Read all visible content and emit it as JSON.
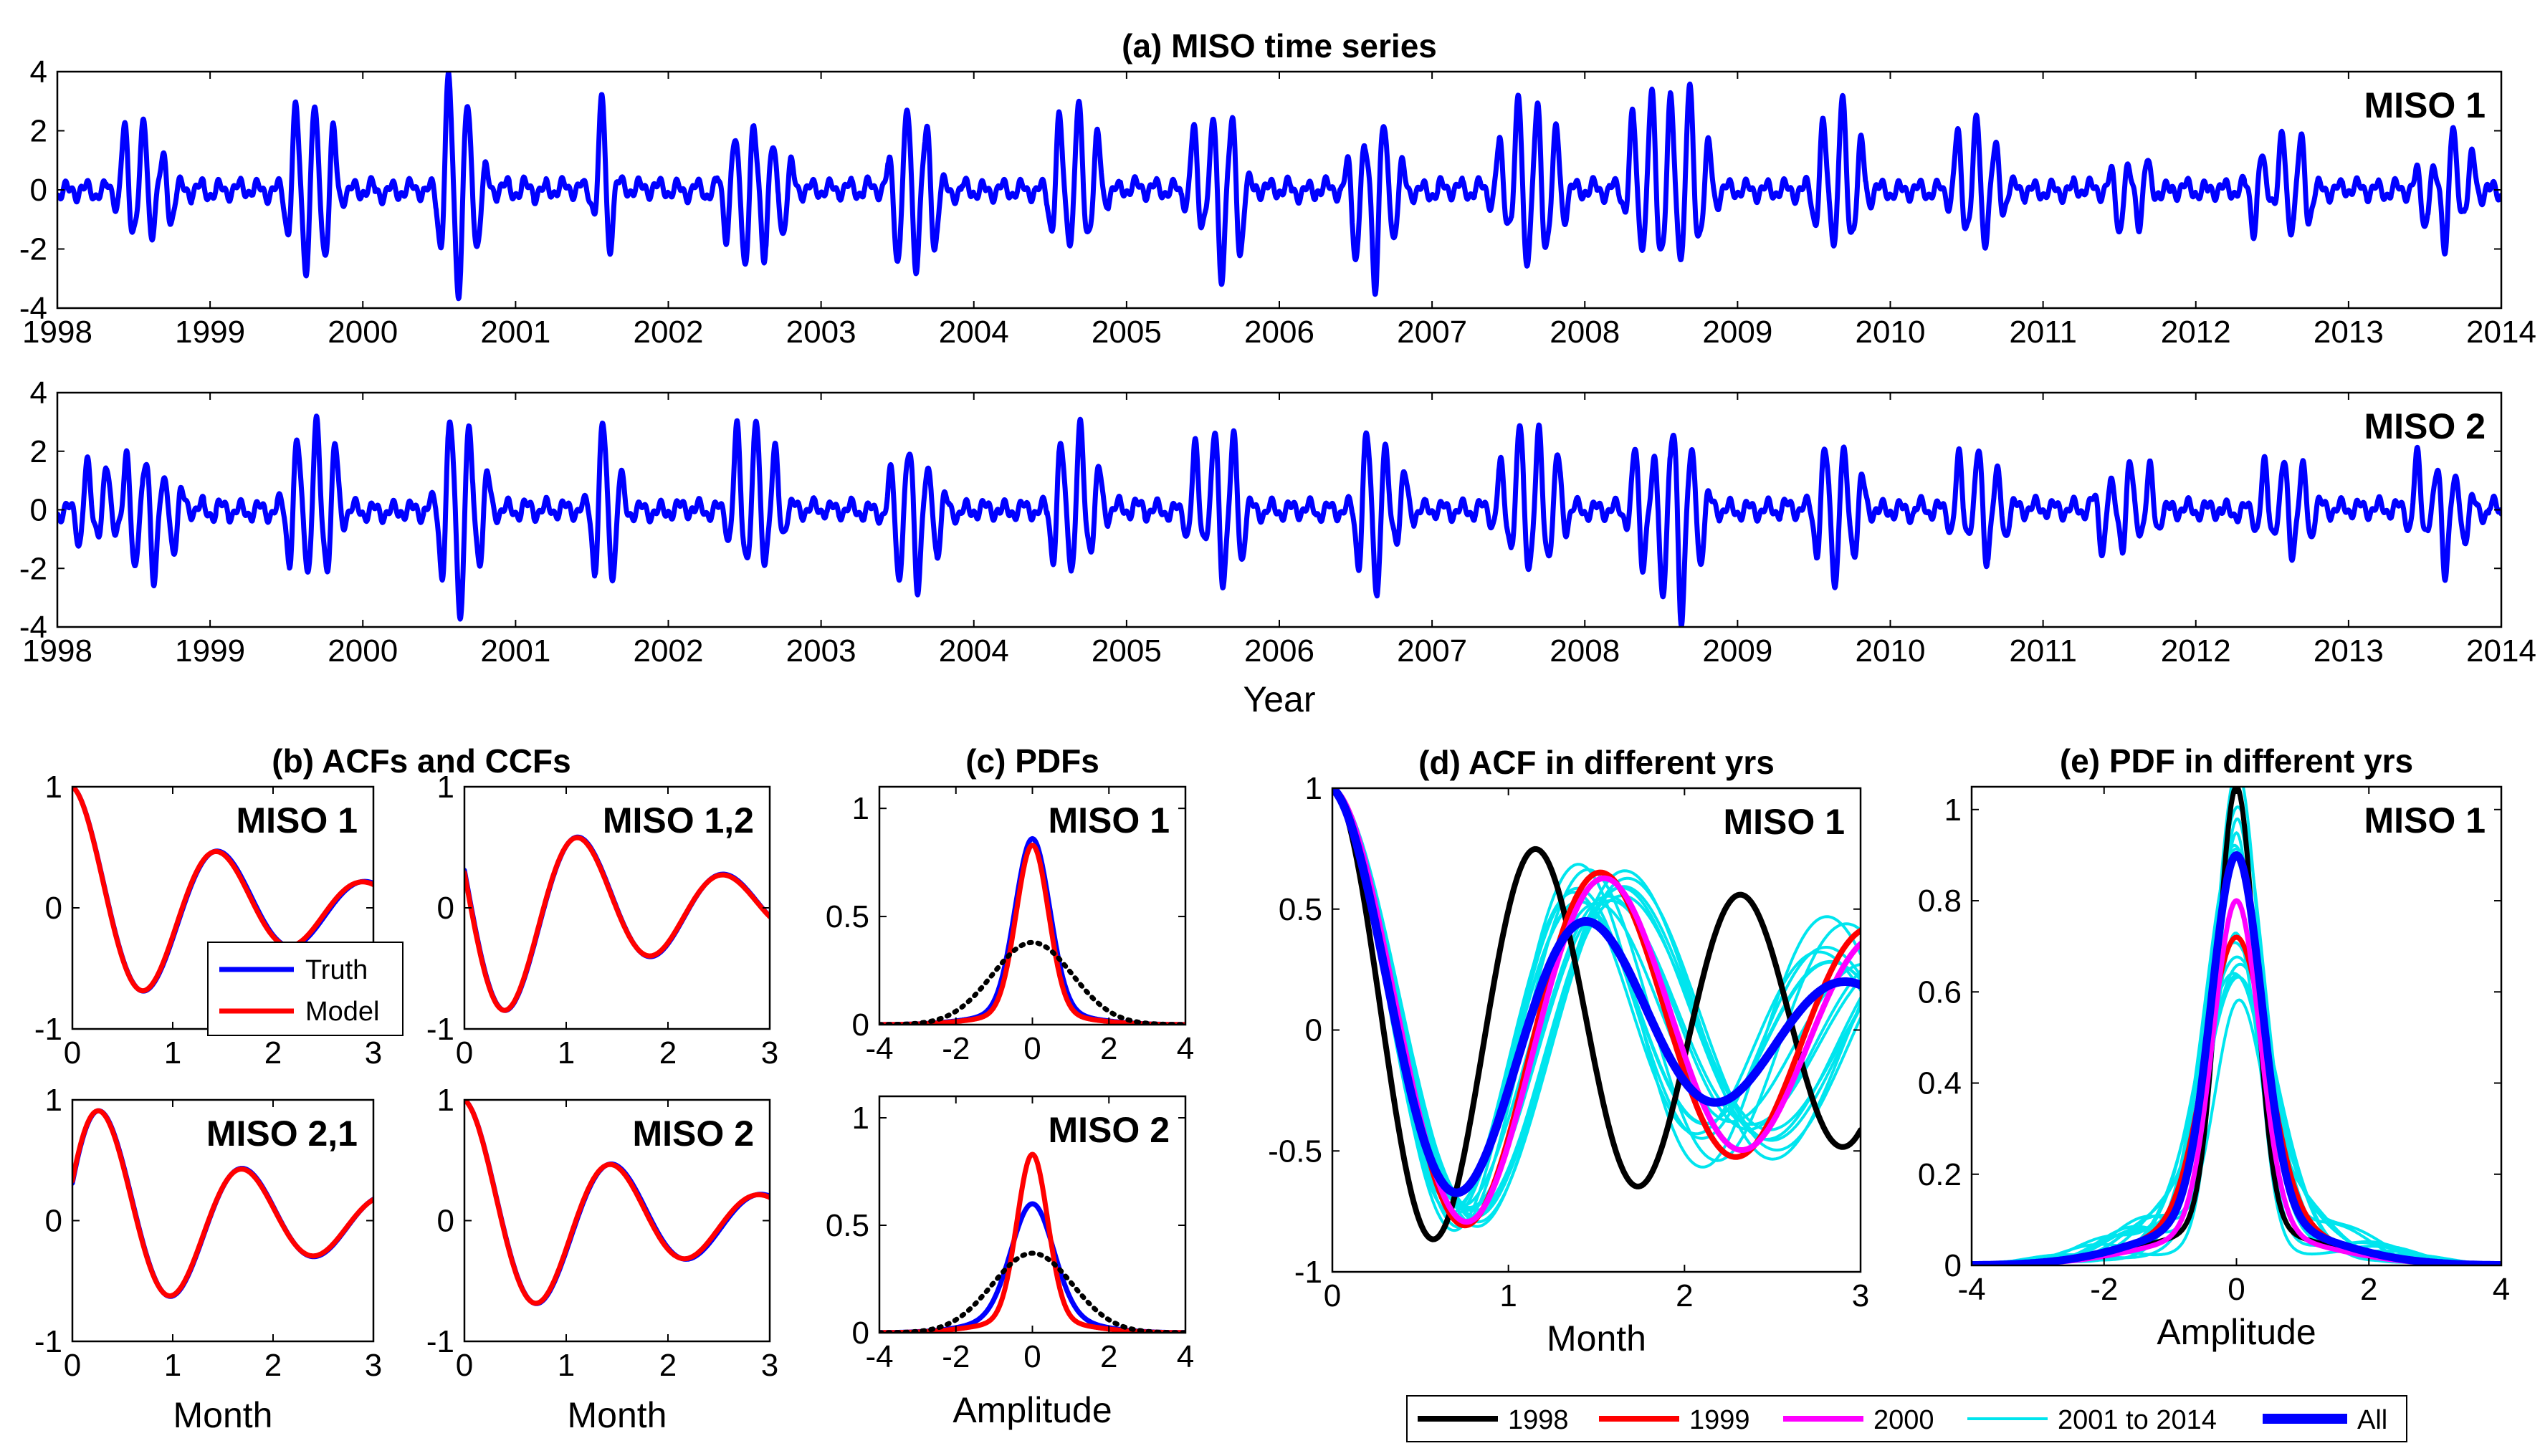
{
  "colors": {
    "truth": "#0000ff",
    "model": "#ff0000",
    "y1998": "#000000",
    "y1999": "#ff0000",
    "y2000": "#ff00ff",
    "y2001_2014": "#00e5ee",
    "all": "#0000ff",
    "gaussian": "#000000"
  },
  "chart_data": [
    {
      "id": "a1",
      "type": "line",
      "title": "(a) MISO time series",
      "label": "MISO 1",
      "xlabel": "",
      "xlim": [
        1998,
        2014
      ],
      "ylim": [
        -4,
        4
      ],
      "x_ticks": [
        "1998",
        "1999",
        "2000",
        "2001",
        "2002",
        "2003",
        "2004",
        "2005",
        "2006",
        "2007",
        "2008",
        "2009",
        "2010",
        "2011",
        "2012",
        "2013",
        "2014"
      ],
      "y_ticks": [
        "4",
        "2",
        "0",
        "-2",
        "-4"
      ],
      "series": [
        {
          "name": "MISO 1",
          "color": "#0000ff",
          "events": [
            [
              1998.45,
              2.1
            ],
            [
              1998.58,
              2.3
            ],
            [
              1998.72,
              1.2
            ],
            [
              1999.55,
              2.6
            ],
            [
              1999.66,
              3.1
            ],
            [
              1999.78,
              2.5
            ],
            [
              2000.55,
              3.5
            ],
            [
              2000.65,
              3.4
            ],
            [
              2000.75,
              1.6
            ],
            [
              2001.58,
              3.3
            ],
            [
              2002.4,
              1.8
            ],
            [
              2002.52,
              2.6
            ],
            [
              2002.64,
              2.2
            ],
            [
              2002.76,
              1.4
            ],
            [
              2003.5,
              2.2
            ],
            [
              2003.6,
              2.8
            ],
            [
              2003.72,
              2.3
            ],
            [
              2004.55,
              2.4
            ],
            [
              2004.68,
              2.8
            ],
            [
              2004.8,
              1.7
            ],
            [
              2005.45,
              2.0
            ],
            [
              2005.6,
              3.2
            ],
            [
              2005.72,
              2.6
            ],
            [
              2006.5,
              2.3
            ],
            [
              2006.64,
              3.3
            ],
            [
              2006.76,
              1.5
            ],
            [
              2007.45,
              1.5
            ],
            [
              2007.58,
              3.2
            ],
            [
              2007.7,
              2.8
            ],
            [
              2007.82,
              2.0
            ],
            [
              2008.32,
              2.4
            ],
            [
              2008.44,
              3.1
            ],
            [
              2008.56,
              2.9
            ],
            [
              2008.68,
              3.4
            ],
            [
              2008.8,
              1.5
            ],
            [
              2009.55,
              2.1
            ],
            [
              2009.68,
              3.0
            ],
            [
              2009.8,
              1.6
            ],
            [
              2010.45,
              1.8
            ],
            [
              2010.58,
              2.5
            ],
            [
              2010.7,
              1.3
            ],
            [
              2011.5,
              1.3
            ],
            [
              2011.65,
              1.2
            ],
            [
              2012.4,
              1.4
            ],
            [
              2012.58,
              1.8
            ],
            [
              2012.7,
              1.7
            ],
            [
              2013.5,
              1.2
            ],
            [
              2013.66,
              2.4
            ],
            [
              2013.8,
              1.0
            ]
          ],
          "seed": 11
        }
      ]
    },
    {
      "id": "a2",
      "type": "line",
      "title": "",
      "label": "MISO 2",
      "xlabel": "Year",
      "xlim": [
        1998,
        2014
      ],
      "ylim": [
        -4,
        4
      ],
      "x_ticks": [
        "1998",
        "1999",
        "2000",
        "2001",
        "2002",
        "2003",
        "2004",
        "2005",
        "2006",
        "2007",
        "2008",
        "2009",
        "2010",
        "2011",
        "2012",
        "2013",
        "2014"
      ],
      "y_ticks": [
        "4",
        "2",
        "0",
        "-2",
        "-4"
      ],
      "series": [
        {
          "name": "MISO 2",
          "color": "#0000ff",
          "events": [
            [
              1998.18,
              1.6
            ],
            [
              1998.32,
              1.3
            ],
            [
              1998.48,
              2.2
            ],
            [
              1998.62,
              2.4
            ],
            [
              1998.76,
              1.3
            ],
            [
              1999.55,
              2.5
            ],
            [
              1999.68,
              3.0
            ],
            [
              1999.8,
              2.4
            ],
            [
              2000.55,
              3.1
            ],
            [
              2000.66,
              3.7
            ],
            [
              2000.78,
              1.8
            ],
            [
              2001.55,
              2.9
            ],
            [
              2001.65,
              2.0
            ],
            [
              2002.45,
              2.6
            ],
            [
              2002.58,
              2.9
            ],
            [
              2002.7,
              1.8
            ],
            [
              2003.5,
              2.3
            ],
            [
              2003.62,
              2.7
            ],
            [
              2003.75,
              1.5
            ],
            [
              2004.55,
              2.4
            ],
            [
              2004.68,
              2.9
            ],
            [
              2004.8,
              1.5
            ],
            [
              2005.45,
              2.0
            ],
            [
              2005.6,
              3.0
            ],
            [
              2005.72,
              2.5
            ],
            [
              2006.55,
              2.6
            ],
            [
              2006.66,
              2.9
            ],
            [
              2006.8,
              1.2
            ],
            [
              2007.45,
              1.4
            ],
            [
              2007.58,
              2.7
            ],
            [
              2007.7,
              2.5
            ],
            [
              2007.82,
              1.8
            ],
            [
              2008.35,
              2.4
            ],
            [
              2008.5,
              2.9
            ],
            [
              2008.62,
              3.8
            ],
            [
              2008.74,
              2.0
            ],
            [
              2009.55,
              2.0
            ],
            [
              2009.66,
              2.6
            ],
            [
              2009.78,
              1.5
            ],
            [
              2010.45,
              1.7
            ],
            [
              2010.6,
              2.2
            ],
            [
              2010.72,
              1.2
            ],
            [
              2011.4,
              1.3
            ],
            [
              2011.55,
              1.7
            ],
            [
              2011.7,
              1.3
            ],
            [
              2012.45,
              1.5
            ],
            [
              2012.6,
              1.8
            ],
            [
              2012.72,
              1.4
            ],
            [
              2013.45,
              1.7
            ],
            [
              2013.62,
              2.2
            ],
            [
              2013.75,
              1.0
            ]
          ],
          "seed": 23
        }
      ]
    },
    {
      "id": "b1",
      "type": "line",
      "title": "(b) ACFs and CCFs",
      "label": "MISO 1",
      "xlabel": "",
      "xlim": [
        0,
        3
      ],
      "ylim": [
        -1,
        1
      ],
      "x_ticks": [
        "0",
        "1",
        "2",
        "3"
      ],
      "y_ticks": [
        "1",
        "0",
        "-1"
      ],
      "legend": [
        "Truth",
        "Model"
      ],
      "series": [
        {
          "name": "Truth",
          "color": "#0000ff",
          "decay": 0.52,
          "freq": 0.68,
          "phase": 0,
          "amp": 1
        },
        {
          "name": "Model",
          "color": "#ff0000",
          "decay": 0.53,
          "freq": 0.685,
          "phase": 0,
          "amp": 1
        }
      ]
    },
    {
      "id": "b2",
      "type": "line",
      "title": "",
      "label": "MISO 1,2",
      "xlabel": "",
      "xlim": [
        0,
        3
      ],
      "ylim": [
        -1,
        1
      ],
      "x_ticks": [
        "0",
        "1",
        "2",
        "3"
      ],
      "y_ticks": [
        "1",
        "0",
        "-1"
      ],
      "series": [
        {
          "name": "Truth",
          "color": "#0000ff",
          "decay": 0.52,
          "freq": 0.7,
          "phase": -0.3,
          "amp": -1.05,
          "sine": true
        },
        {
          "name": "Model",
          "color": "#ff0000",
          "decay": 0.53,
          "freq": 0.7,
          "phase": -0.28,
          "amp": -1.05,
          "sine": true
        }
      ]
    },
    {
      "id": "b3",
      "type": "line",
      "title": "",
      "label": "MISO 2,1",
      "xlabel": "Month",
      "xlim": [
        0,
        3
      ],
      "ylim": [
        -1,
        1
      ],
      "x_ticks": [
        "0",
        "1",
        "2",
        "3"
      ],
      "y_ticks": [
        "1",
        "0",
        "-1"
      ],
      "series": [
        {
          "name": "Truth",
          "color": "#0000ff",
          "decay": 0.52,
          "freq": 0.7,
          "phase": 0.3,
          "amp": 1.05,
          "sine": true
        },
        {
          "name": "Model",
          "color": "#ff0000",
          "decay": 0.53,
          "freq": 0.7,
          "phase": 0.32,
          "amp": 1.05,
          "sine": true
        }
      ]
    },
    {
      "id": "b4",
      "type": "line",
      "title": "",
      "label": "MISO 2",
      "xlabel": "Month",
      "xlim": [
        0,
        3
      ],
      "ylim": [
        -1,
        1
      ],
      "x_ticks": [
        "0",
        "1",
        "2",
        "3"
      ],
      "y_ticks": [
        "1",
        "0",
        "-1"
      ],
      "series": [
        {
          "name": "Truth",
          "color": "#0000ff",
          "decay": 0.52,
          "freq": 0.68,
          "phase": 0,
          "amp": 1
        },
        {
          "name": "Model",
          "color": "#ff0000",
          "decay": 0.53,
          "freq": 0.685,
          "phase": 0,
          "amp": 1
        }
      ]
    },
    {
      "id": "c1",
      "type": "line",
      "title": "(c) PDFs",
      "label": "MISO 1",
      "xlabel": "",
      "xlim": [
        -4,
        4
      ],
      "ylim": [
        0,
        1.1
      ],
      "x_ticks": [
        "-4",
        "-2",
        "0",
        "2",
        "4"
      ],
      "y_ticks": [
        "1",
        "0.5",
        "0"
      ],
      "series": [
        {
          "name": "Truth",
          "color": "#0000ff",
          "peak": 0.8,
          "width": 0.45,
          "tail": 0.06
        },
        {
          "name": "Model",
          "color": "#ff0000",
          "peak": 0.78,
          "width": 0.42,
          "tail": 0.05
        },
        {
          "name": "Gaussian",
          "color": "#000000",
          "peak": 0.38,
          "width": 1.05,
          "dotted": true
        }
      ]
    },
    {
      "id": "c2",
      "type": "line",
      "title": "",
      "label": "MISO 2",
      "xlabel": "Amplitude",
      "xlim": [
        -4,
        4
      ],
      "ylim": [
        0,
        1.1
      ],
      "x_ticks": [
        "-4",
        "-2",
        "0",
        "2",
        "4"
      ],
      "y_ticks": [
        "1",
        "0.5",
        "0"
      ],
      "series": [
        {
          "name": "Truth",
          "color": "#0000ff",
          "peak": 0.52,
          "width": 0.55,
          "tail": 0.08
        },
        {
          "name": "Model",
          "color": "#ff0000",
          "peak": 0.77,
          "width": 0.4,
          "tail": 0.06
        },
        {
          "name": "Gaussian",
          "color": "#000000",
          "peak": 0.37,
          "width": 1.05,
          "dotted": true
        }
      ]
    },
    {
      "id": "d",
      "type": "line",
      "title": "(d) ACF in different yrs",
      "label": "MISO 1",
      "xlabel": "Month",
      "xlim": [
        0,
        3
      ],
      "ylim": [
        -1,
        1
      ],
      "x_ticks": [
        "0",
        "1",
        "2",
        "3"
      ],
      "y_ticks": [
        "1",
        "0.5",
        "0",
        "-0.5",
        "-1"
      ],
      "series": [
        {
          "name": "2001 to 2014",
          "color": "#00e5ee",
          "cyan_group": true,
          "count": 14
        },
        {
          "name": "1998",
          "color": "#000000",
          "decay": 0.25,
          "freq": 0.86,
          "amp": 1
        },
        {
          "name": "1999",
          "color": "#ff0000",
          "decay": 0.28,
          "freq": 0.65,
          "amp": 1
        },
        {
          "name": "2000",
          "color": "#ff00ff",
          "decay": 0.3,
          "freq": 0.64,
          "amp": 1
        },
        {
          "name": "All",
          "color": "#0000ff",
          "decay": 0.55,
          "freq": 0.68,
          "amp": 1,
          "thick": true
        }
      ]
    },
    {
      "id": "e",
      "type": "line",
      "title": "(e) PDF in different yrs",
      "label": "MISO 1",
      "xlabel": "Amplitude",
      "xlim": [
        -4,
        4
      ],
      "ylim": [
        0,
        1.05
      ],
      "x_ticks": [
        "-4",
        "-2",
        "0",
        "2",
        "4"
      ],
      "y_ticks": [
        "1",
        "0.8",
        "0.6",
        "0.4",
        "0.2",
        "0"
      ],
      "series": [
        {
          "name": "2001 to 2014",
          "color": "#00e5ee",
          "cyan_group": true,
          "count": 14
        },
        {
          "name": "1998",
          "color": "#000000",
          "peak": 0.97,
          "width": 0.28,
          "tail": 0.08
        },
        {
          "name": "1999",
          "color": "#ff0000",
          "peak": 0.62,
          "width": 0.45,
          "tail": 0.1
        },
        {
          "name": "2000",
          "color": "#ff00ff",
          "peak": 0.73,
          "width": 0.35,
          "tail": 0.07
        },
        {
          "name": "All",
          "color": "#0000ff",
          "peak": 0.8,
          "width": 0.38,
          "tail": 0.1,
          "thick": true
        }
      ]
    }
  ],
  "bottom_legend": [
    {
      "label": "1998",
      "color": "#000000"
    },
    {
      "label": "1999",
      "color": "#ff0000"
    },
    {
      "label": "2000",
      "color": "#ff00ff"
    },
    {
      "label": "2001 to 2014",
      "color": "#00e5ee"
    },
    {
      "label": "All",
      "color": "#0000ff"
    }
  ]
}
